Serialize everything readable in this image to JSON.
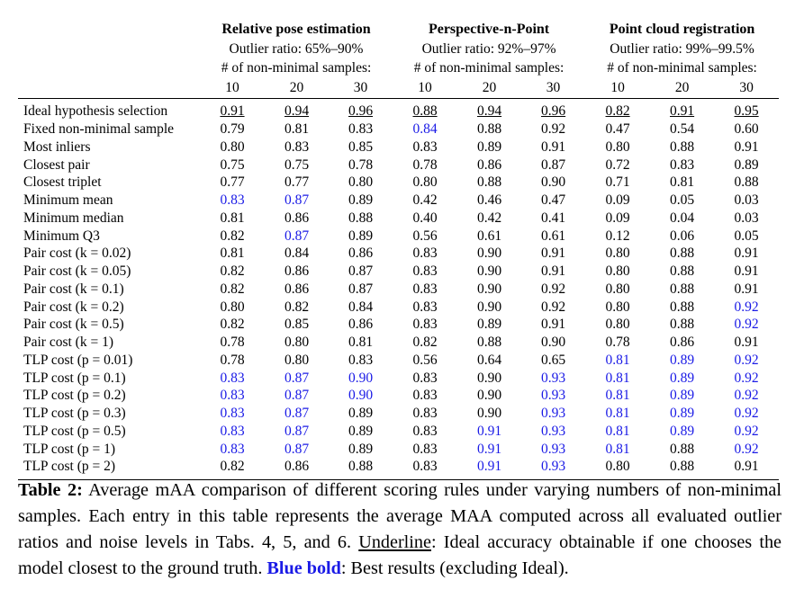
{
  "table": {
    "groups": [
      {
        "title": "Relative pose estimation",
        "outlier": "Outlier ratio: 65%–90%",
        "samples_label": "# of non-minimal samples:"
      },
      {
        "title": "Perspective-n-Point",
        "outlier": "Outlier ratio: 92%–97%",
        "samples_label": "# of non-minimal samples:"
      },
      {
        "title": "Point cloud registration",
        "outlier": "Outlier ratio: 99%–99.5%",
        "samples_label": "# of non-minimal samples:"
      }
    ],
    "sample_counts": [
      "10",
      "20",
      "30",
      "10",
      "20",
      "30",
      "10",
      "20",
      "30"
    ],
    "rows": [
      {
        "label": "Ideal hypothesis selection",
        "values": [
          "0.91",
          "0.94",
          "0.96",
          "0.88",
          "0.94",
          "0.96",
          "0.82",
          "0.91",
          "0.95"
        ],
        "style": "uuuuuuuuu"
      },
      {
        "label": "Fixed non-minimal sample",
        "values": [
          "0.79",
          "0.81",
          "0.83",
          "0.84",
          "0.88",
          "0.92",
          "0.47",
          "0.54",
          "0.60"
        ],
        "style": "...b....."
      },
      {
        "label": "Most inliers",
        "values": [
          "0.80",
          "0.83",
          "0.85",
          "0.83",
          "0.89",
          "0.91",
          "0.80",
          "0.88",
          "0.91"
        ],
        "style": "........."
      },
      {
        "label": "Closest pair",
        "values": [
          "0.75",
          "0.75",
          "0.78",
          "0.78",
          "0.86",
          "0.87",
          "0.72",
          "0.83",
          "0.89"
        ],
        "style": "........."
      },
      {
        "label": "Closest triplet",
        "values": [
          "0.77",
          "0.77",
          "0.80",
          "0.80",
          "0.88",
          "0.90",
          "0.71",
          "0.81",
          "0.88"
        ],
        "style": "........."
      },
      {
        "label": "Minimum mean",
        "values": [
          "0.83",
          "0.87",
          "0.89",
          "0.42",
          "0.46",
          "0.47",
          "0.09",
          "0.05",
          "0.03"
        ],
        "style": "bb......."
      },
      {
        "label": "Minimum median",
        "values": [
          "0.81",
          "0.86",
          "0.88",
          "0.40",
          "0.42",
          "0.41",
          "0.09",
          "0.04",
          "0.03"
        ],
        "style": "........."
      },
      {
        "label": "Minimum Q3",
        "values": [
          "0.82",
          "0.87",
          "0.89",
          "0.56",
          "0.61",
          "0.61",
          "0.12",
          "0.06",
          "0.05"
        ],
        "style": ".b......."
      },
      {
        "label": "Pair cost (k = 0.02)",
        "values": [
          "0.81",
          "0.84",
          "0.86",
          "0.83",
          "0.90",
          "0.91",
          "0.80",
          "0.88",
          "0.91"
        ],
        "style": "........."
      },
      {
        "label": "Pair cost (k = 0.05)",
        "values": [
          "0.82",
          "0.86",
          "0.87",
          "0.83",
          "0.90",
          "0.91",
          "0.80",
          "0.88",
          "0.91"
        ],
        "style": "........."
      },
      {
        "label": "Pair cost (k = 0.1)",
        "values": [
          "0.82",
          "0.86",
          "0.87",
          "0.83",
          "0.90",
          "0.92",
          "0.80",
          "0.88",
          "0.91"
        ],
        "style": "........."
      },
      {
        "label": "Pair cost (k = 0.2)",
        "values": [
          "0.80",
          "0.82",
          "0.84",
          "0.83",
          "0.90",
          "0.92",
          "0.80",
          "0.88",
          "0.92"
        ],
        "style": "........b"
      },
      {
        "label": "Pair cost (k = 0.5)",
        "values": [
          "0.82",
          "0.85",
          "0.86",
          "0.83",
          "0.89",
          "0.91",
          "0.80",
          "0.88",
          "0.92"
        ],
        "style": "........b"
      },
      {
        "label": "Pair cost (k = 1)",
        "values": [
          "0.78",
          "0.80",
          "0.81",
          "0.82",
          "0.88",
          "0.90",
          "0.78",
          "0.86",
          "0.91"
        ],
        "style": "........."
      },
      {
        "label": "TLP cost (p = 0.01)",
        "values": [
          "0.78",
          "0.80",
          "0.83",
          "0.56",
          "0.64",
          "0.65",
          "0.81",
          "0.89",
          "0.92"
        ],
        "style": "......bbb"
      },
      {
        "label": "TLP cost (p = 0.1)",
        "values": [
          "0.83",
          "0.87",
          "0.90",
          "0.83",
          "0.90",
          "0.93",
          "0.81",
          "0.89",
          "0.92"
        ],
        "style": "bbb..bbbb"
      },
      {
        "label": "TLP cost (p = 0.2)",
        "values": [
          "0.83",
          "0.87",
          "0.90",
          "0.83",
          "0.90",
          "0.93",
          "0.81",
          "0.89",
          "0.92"
        ],
        "style": "bbb..bbbb"
      },
      {
        "label": "TLP cost (p = 0.3)",
        "values": [
          "0.83",
          "0.87",
          "0.89",
          "0.83",
          "0.90",
          "0.93",
          "0.81",
          "0.89",
          "0.92"
        ],
        "style": "bb...bbbb"
      },
      {
        "label": "TLP cost (p = 0.5)",
        "values": [
          "0.83",
          "0.87",
          "0.89",
          "0.83",
          "0.91",
          "0.93",
          "0.81",
          "0.89",
          "0.92"
        ],
        "style": "bb..bbbbb"
      },
      {
        "label": "TLP cost (p = 1)",
        "values": [
          "0.83",
          "0.87",
          "0.89",
          "0.83",
          "0.91",
          "0.93",
          "0.81",
          "0.88",
          "0.92"
        ],
        "style": "bb..bbb.b"
      },
      {
        "label": "TLP cost (p = 2)",
        "values": [
          "0.82",
          "0.86",
          "0.88",
          "0.83",
          "0.91",
          "0.93",
          "0.80",
          "0.88",
          "0.91"
        ],
        "style": "....bb..."
      }
    ]
  },
  "caption": {
    "label": "Table 2:",
    "text1": " Average mAA comparison of different scoring rules under varying numbers of non-minimal samples. Each entry in this table represents the average MAA computed across all evaluated outlier ratios and noise levels in Tabs. 4, 5, and 6. ",
    "underline_word": "Underline",
    "text2": ": Ideal accuracy obtainable if one chooses the model closest to the ground truth. ",
    "blue_word": "Blue bold",
    "text3": ": Best results (excluding Ideal)."
  },
  "colors": {
    "best": "#1a1ae6"
  }
}
